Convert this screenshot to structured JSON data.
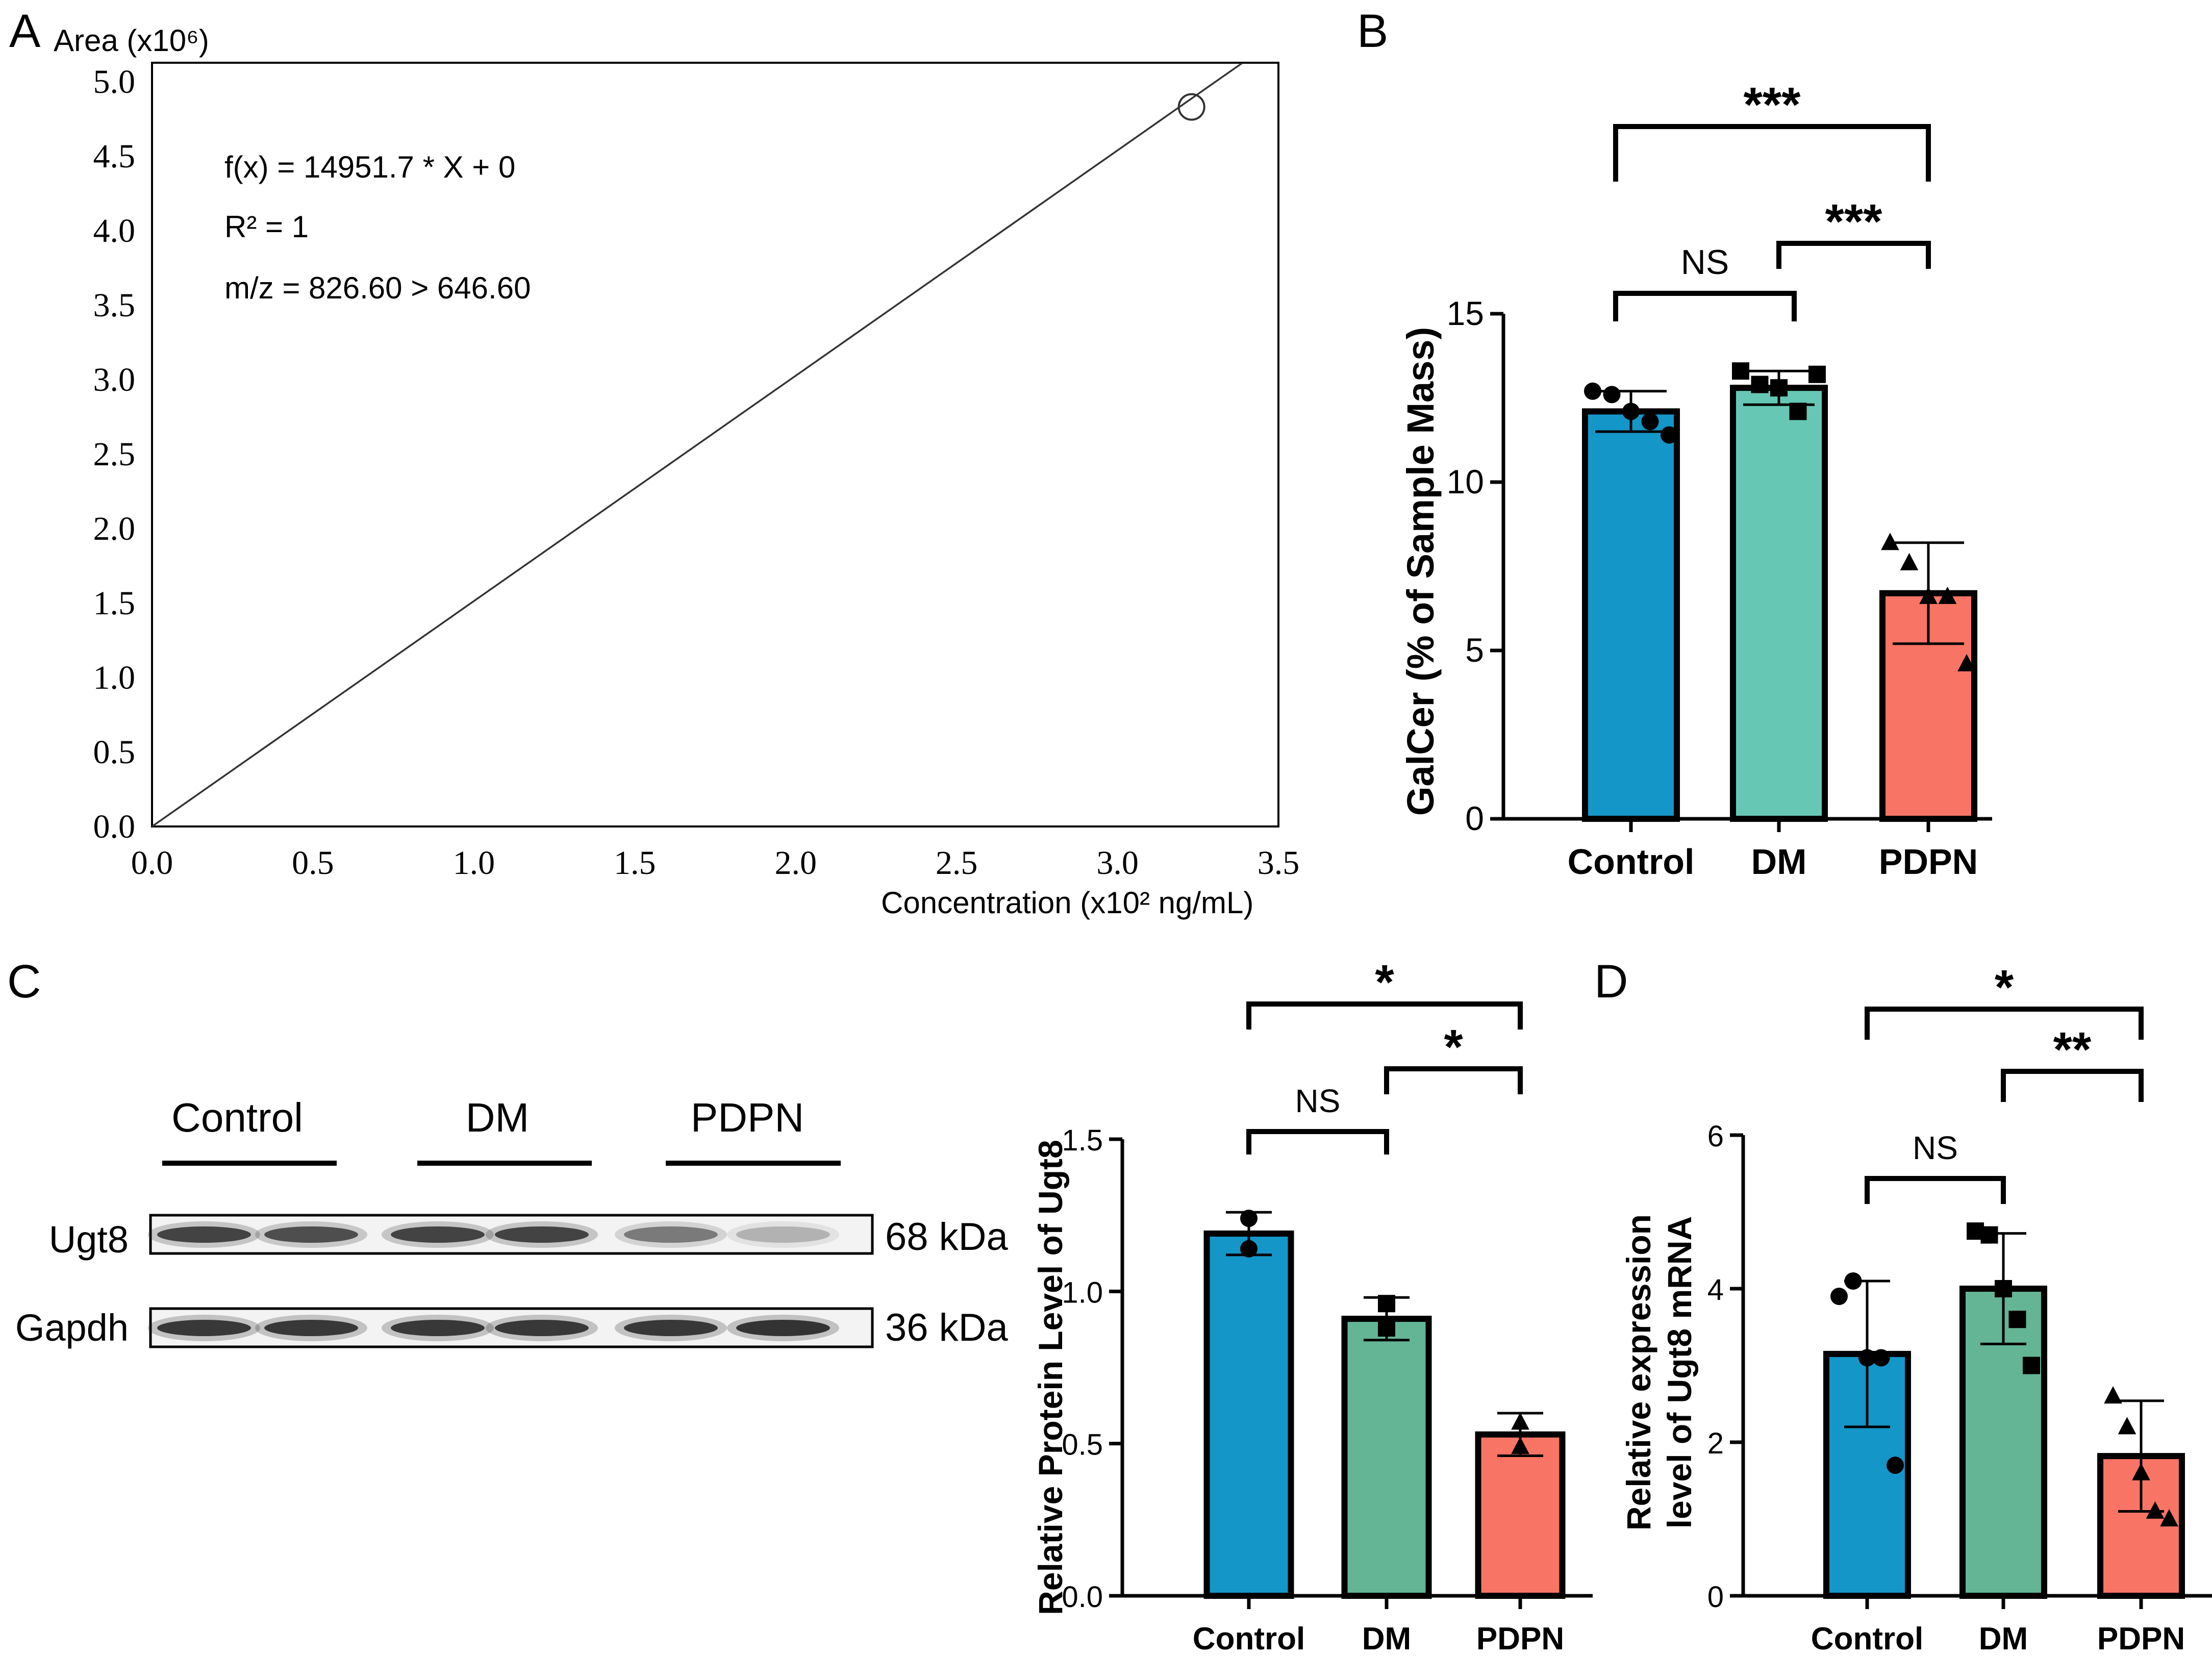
{
  "panels": {
    "a": "A",
    "b": "B",
    "c": "C",
    "d": "D"
  },
  "chart_data": [
    {
      "panel": "A",
      "type": "line",
      "ylabel": "Area (x10⁶)",
      "xlabel": "Concentration (x10² ng/mL)",
      "xlim": [
        0,
        3.5
      ],
      "ylim": [
        0,
        5.0
      ],
      "xticks": [
        "0.0",
        "0.5",
        "1.0",
        "1.5",
        "2.0",
        "2.5",
        "3.0",
        "3.5"
      ],
      "yticks": [
        "0.0",
        "0.5",
        "1.0",
        "1.5",
        "2.0",
        "2.5",
        "3.0",
        "3.5",
        "4.0",
        "4.5",
        "5.0"
      ],
      "annotations": [
        "f(x) = 14951.7 * X + 0",
        "R² = 1",
        "m/z = 826.60 > 646.60"
      ],
      "line": {
        "x": [
          0,
          3.4
        ],
        "y": [
          0,
          5.02
        ]
      },
      "points": [
        {
          "x": 3.23,
          "y": 4.83
        }
      ],
      "grid": false
    },
    {
      "panel": "B",
      "type": "bar",
      "ylabel": "GalCer (% of Sample Mass)",
      "ylim": [
        0,
        15
      ],
      "yticks": [
        "0",
        "5",
        "10",
        "15"
      ],
      "categories": [
        "Control",
        "DM",
        "PDPN"
      ],
      "values": [
        12.1,
        12.8,
        6.7
      ],
      "errors": [
        0.6,
        0.5,
        1.5
      ],
      "colors": [
        "#1496c8",
        "#66c8b4",
        "#f87465"
      ],
      "markers": [
        "circle",
        "square",
        "triangle"
      ],
      "points": [
        [
          12.7,
          12.6,
          12.1,
          11.8,
          11.4
        ],
        [
          13.3,
          12.9,
          12.8,
          12.1,
          13.2
        ],
        [
          8.2,
          7.6,
          6.6,
          6.6,
          4.6
        ]
      ],
      "significance": [
        {
          "from": 0,
          "to": 1,
          "label": "NS"
        },
        {
          "from": 1,
          "to": 2,
          "label": "***"
        },
        {
          "from": 0,
          "to": 2,
          "label": "***"
        }
      ]
    },
    {
      "panel": "C",
      "type": "bar",
      "ylabel": "Relative Protein Level of Ugt8",
      "ylim": [
        0,
        1.5
      ],
      "yticks": [
        "0.0",
        "0.5",
        "1.0",
        "1.5"
      ],
      "categories": [
        "Control",
        "DM",
        "PDPN"
      ],
      "values": [
        1.19,
        0.91,
        0.53
      ],
      "errors": [
        0.07,
        0.07,
        0.07
      ],
      "colors": [
        "#1496c8",
        "#64b496",
        "#f87465"
      ],
      "markers": [
        "circle",
        "square",
        "triangle"
      ],
      "points": [
        [
          1.24,
          1.14
        ],
        [
          0.96,
          0.88
        ],
        [
          0.57,
          0.49
        ]
      ],
      "significance": [
        {
          "from": 0,
          "to": 1,
          "label": "NS"
        },
        {
          "from": 1,
          "to": 2,
          "label": "*"
        },
        {
          "from": 0,
          "to": 2,
          "label": "*"
        }
      ]
    },
    {
      "panel": "D",
      "type": "bar",
      "ylabel": "Relative expression level of Ugt8 mRNA",
      "ylim": [
        0,
        6
      ],
      "yticks": [
        "0",
        "2",
        "4",
        "6"
      ],
      "categories": [
        "Control",
        "DM",
        "PDPN"
      ],
      "values": [
        3.15,
        4.0,
        1.82
      ],
      "errors": [
        0.95,
        0.72,
        0.72
      ],
      "colors": [
        "#1496c8",
        "#64b496",
        "#f87465"
      ],
      "markers": [
        "circle",
        "square",
        "triangle"
      ],
      "points": [
        [
          3.9,
          4.1,
          3.1,
          3.1,
          1.7
        ],
        [
          4.75,
          4.7,
          4.0,
          3.6,
          3.0
        ],
        [
          2.6,
          2.2,
          1.6,
          1.1,
          1.0
        ]
      ],
      "significance": [
        {
          "from": 0,
          "to": 1,
          "label": "NS"
        },
        {
          "from": 1,
          "to": 2,
          "label": "**"
        },
        {
          "from": 0,
          "to": 2,
          "label": "*"
        }
      ]
    }
  ],
  "western_blot": {
    "groups": [
      "Control",
      "DM",
      "PDPN"
    ],
    "rows": [
      {
        "label": "Ugt8",
        "size": "68 kDa",
        "intensity": [
          0.85,
          0.8,
          0.85,
          0.85,
          0.6,
          0.35
        ]
      },
      {
        "label": "Gapdh",
        "size": "36 kDa",
        "intensity": [
          0.9,
          0.9,
          0.9,
          0.9,
          0.9,
          0.92
        ]
      }
    ]
  }
}
